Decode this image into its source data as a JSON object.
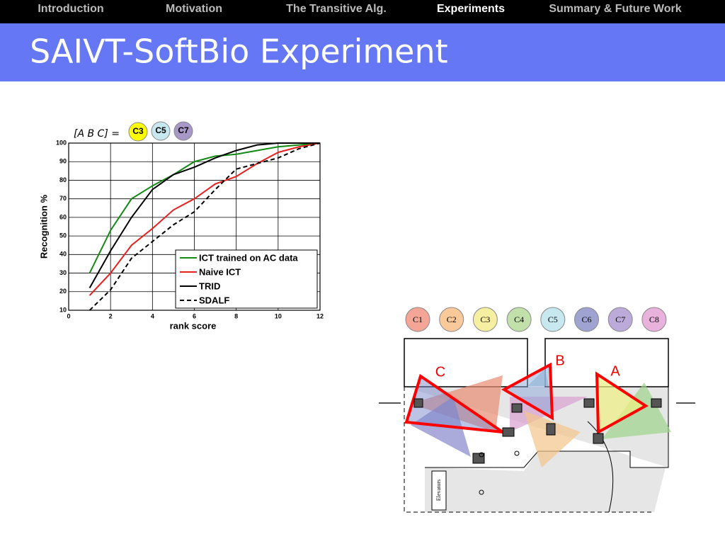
{
  "nav": {
    "items": [
      "Introduction",
      "Motivation",
      "The Transitive Alg.",
      "Experiments",
      "Summary & Future Work"
    ],
    "active": 3
  },
  "title": "SAIVT-SoftBio Experiment",
  "chart_data": {
    "type": "line",
    "y_label": "Recognition %",
    "x_label": "rank score",
    "annotation": {
      "text": "[A B C] =",
      "items": [
        {
          "label": "C3",
          "color": "#ffff00"
        },
        {
          "label": "C5",
          "color": "#c8e8ef"
        },
        {
          "label": "C7",
          "color": "#a898c8"
        }
      ]
    },
    "x": [
      1,
      2,
      3,
      4,
      5,
      6,
      7,
      8,
      9,
      10,
      11,
      12
    ],
    "series": [
      {
        "name": "ICT trained on AC data",
        "color": "#138a13",
        "dashed": false,
        "values": [
          30,
          53,
          70,
          77,
          83,
          90,
          93,
          94,
          96,
          98,
          99,
          100
        ]
      },
      {
        "name": "Naive ICT",
        "color": "#e82020",
        "dashed": false,
        "values": [
          18,
          30,
          45,
          54,
          64,
          70,
          78,
          82,
          89,
          95,
          98,
          100
        ]
      },
      {
        "name": "TRID",
        "color": "#000000",
        "dashed": false,
        "values": [
          22,
          42,
          60,
          75,
          83,
          87,
          92,
          96,
          99,
          100,
          100,
          100
        ]
      },
      {
        "name": "SDALF",
        "color": "#000000",
        "dashed": true,
        "values": [
          10,
          21,
          38,
          47,
          56,
          63,
          75,
          86,
          89,
          92,
          97,
          100
        ]
      }
    ],
    "xlim": [
      0,
      12
    ],
    "xticks": [
      0,
      2,
      4,
      6,
      8,
      10,
      12
    ],
    "ylim": [
      10,
      100
    ],
    "yticks": [
      10,
      20,
      30,
      40,
      50,
      60,
      70,
      80,
      90,
      100
    ],
    "grid": true
  },
  "floor_plan": {
    "cameras": [
      {
        "label": "C1",
        "color": "#f4a595"
      },
      {
        "label": "C2",
        "color": "#f9c99a"
      },
      {
        "label": "C3",
        "color": "#f6eea0"
      },
      {
        "label": "C4",
        "color": "#c2e0aa"
      },
      {
        "label": "C5",
        "color": "#c8e8ef"
      },
      {
        "label": "C6",
        "color": "#9ea3d2"
      },
      {
        "label": "C7",
        "color": "#bbaada"
      },
      {
        "label": "C8",
        "color": "#e9b2dc"
      }
    ],
    "regions": [
      "A",
      "B",
      "C"
    ],
    "elevators": "Elevators"
  }
}
